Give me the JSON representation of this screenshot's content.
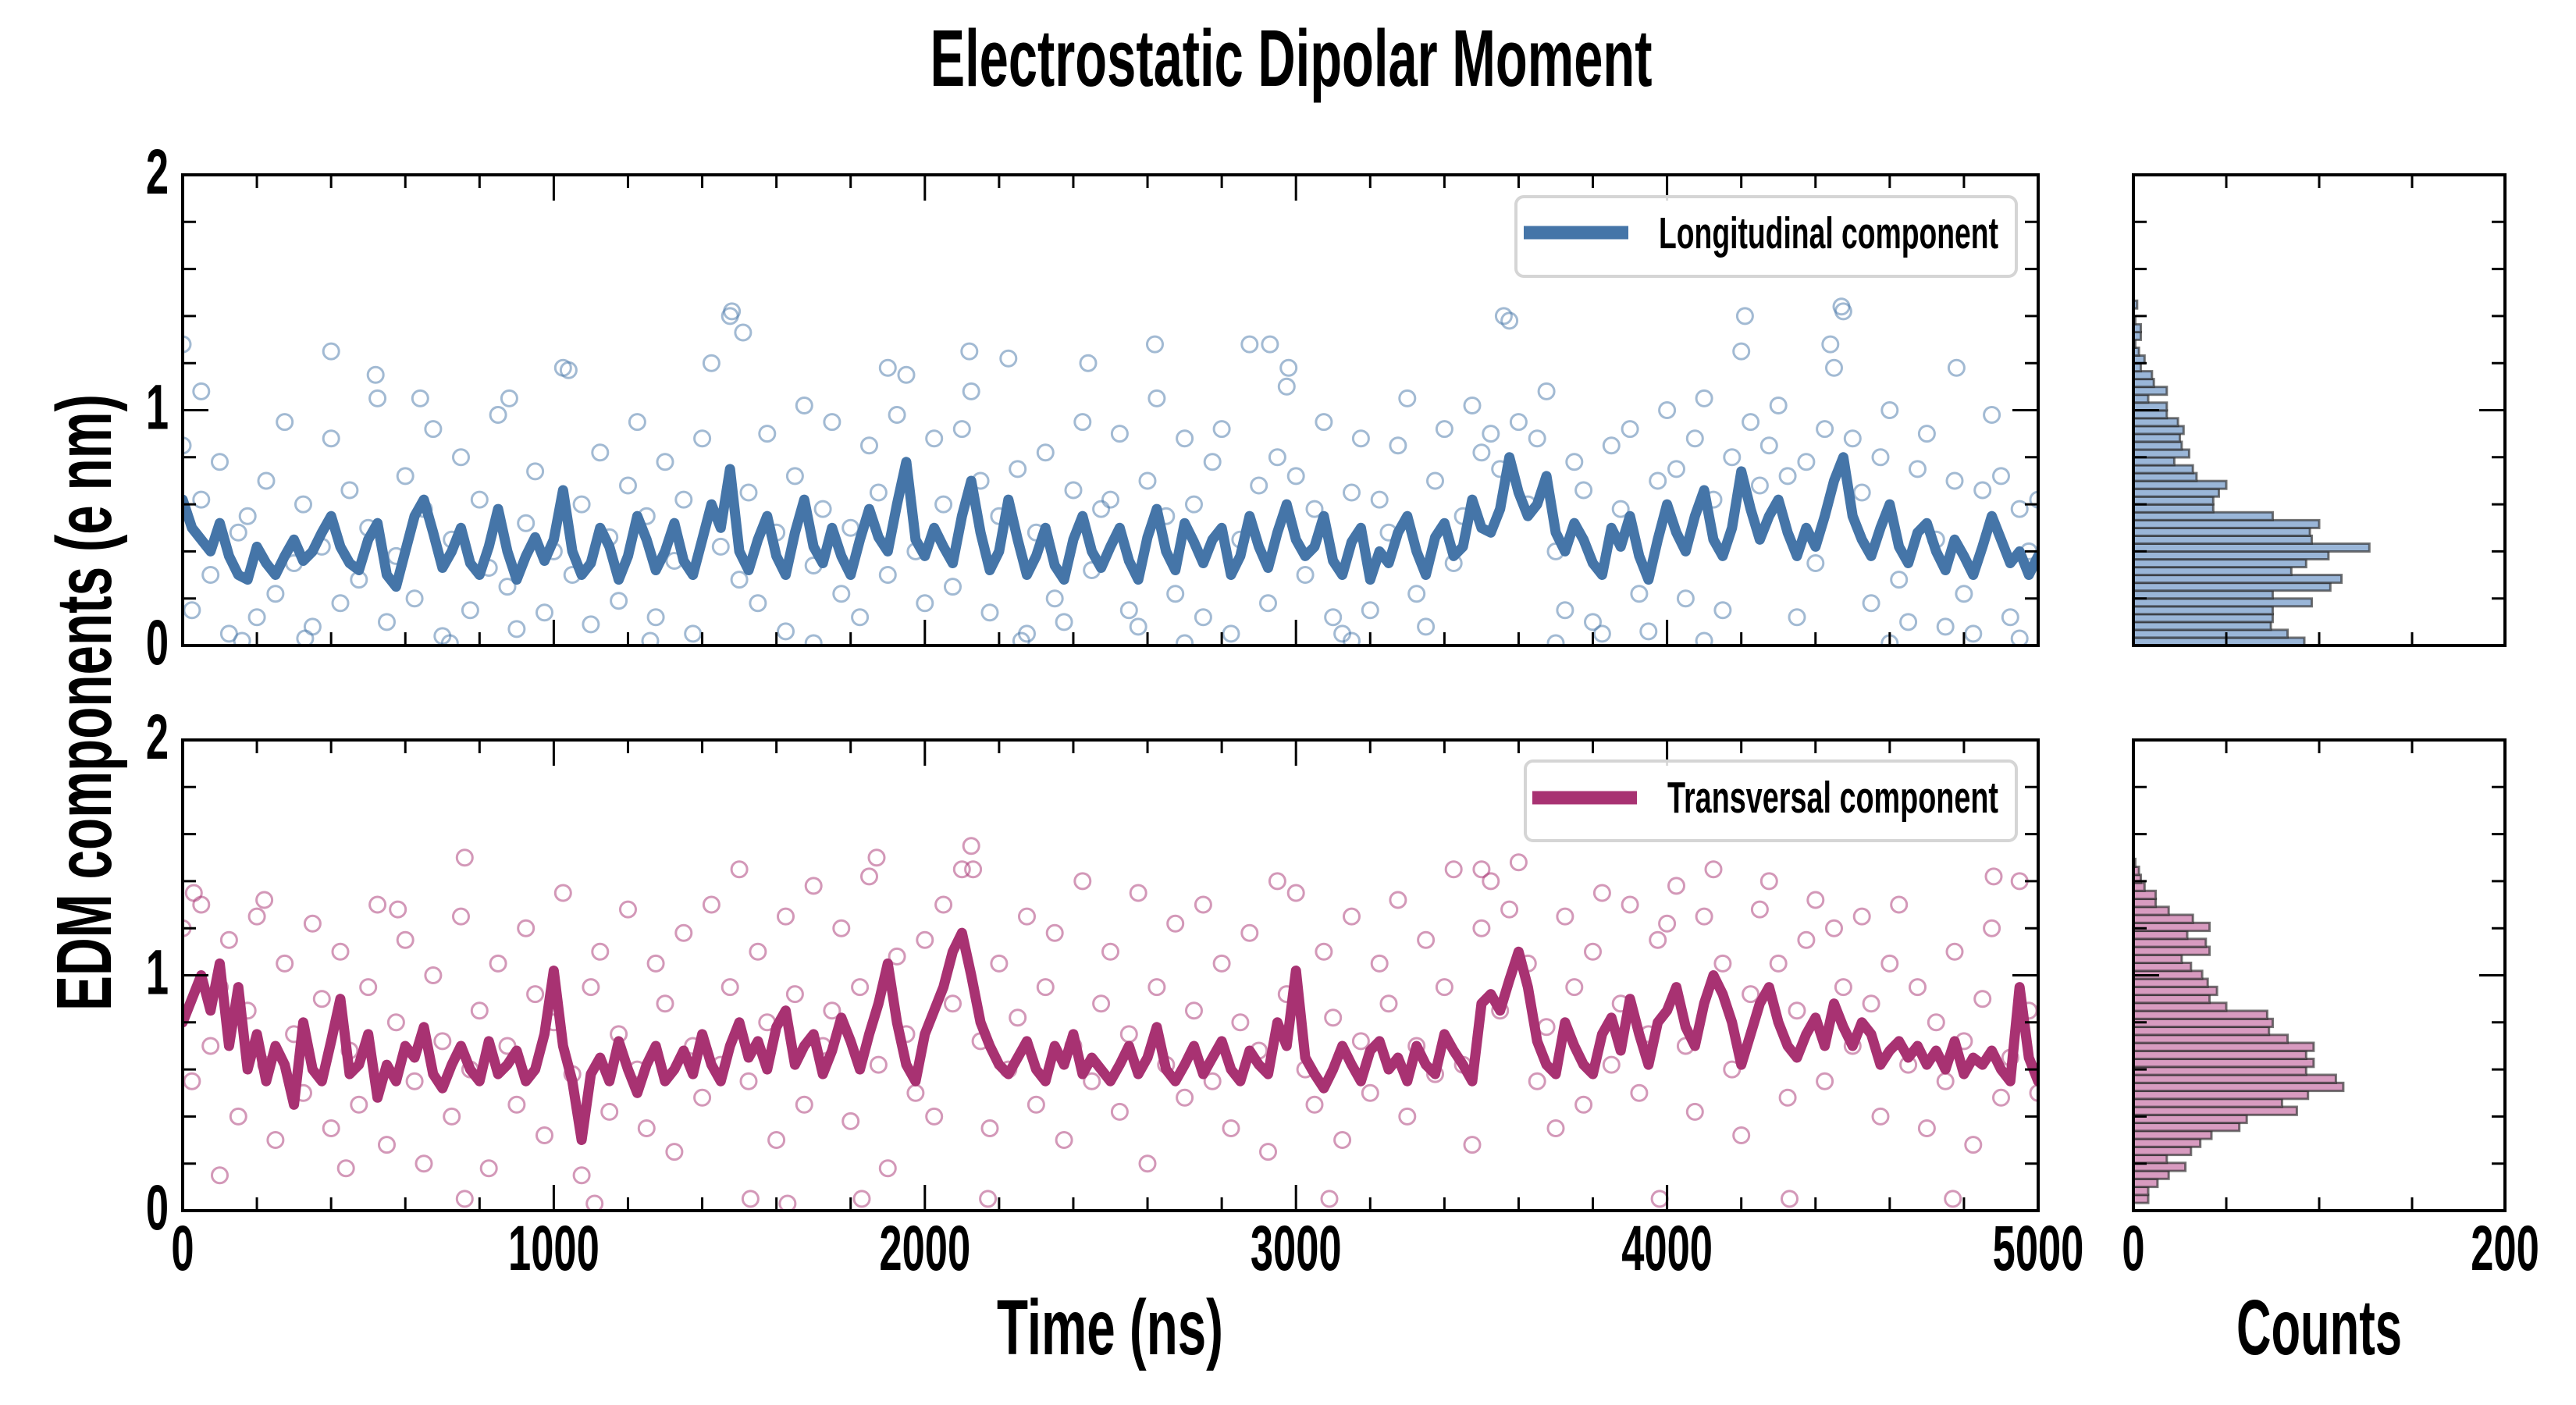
{
  "title": "Electrostatic Dipolar Moment",
  "axes": {
    "ylabel": "EDM components (e nm)",
    "xlabel_main": "Time (ns)",
    "xlabel_hist": "Counts"
  },
  "legend": {
    "top": "Longitudinal component",
    "bottom": "Transversal component"
  },
  "chart_data": [
    {
      "type": "scatter+line",
      "name": "Longitudinal component",
      "color": "#4575a8",
      "xlim": [
        0,
        5000
      ],
      "ylim": [
        0,
        2
      ],
      "x_major_ticks": [
        0,
        1000,
        2000,
        3000,
        4000,
        5000
      ],
      "x_minor_step": 200,
      "y_major_ticks": [
        0,
        1,
        2
      ],
      "y_minor_step": 0.2,
      "y_tick_labels": [
        "0",
        "1",
        "2"
      ],
      "x_tick_labels": [],
      "x_start": 0,
      "x_step": 25,
      "line": [
        0.62,
        0.5,
        0.45,
        0.4,
        0.52,
        0.38,
        0.3,
        0.28,
        0.42,
        0.35,
        0.3,
        0.38,
        0.45,
        0.36,
        0.4,
        0.48,
        0.55,
        0.42,
        0.35,
        0.32,
        0.45,
        0.52,
        0.3,
        0.25,
        0.4,
        0.55,
        0.62,
        0.48,
        0.33,
        0.4,
        0.5,
        0.35,
        0.3,
        0.42,
        0.58,
        0.4,
        0.28,
        0.38,
        0.46,
        0.36,
        0.45,
        0.66,
        0.4,
        0.3,
        0.35,
        0.5,
        0.42,
        0.28,
        0.38,
        0.55,
        0.45,
        0.32,
        0.4,
        0.52,
        0.36,
        0.3,
        0.45,
        0.6,
        0.5,
        0.75,
        0.4,
        0.32,
        0.45,
        0.55,
        0.38,
        0.3,
        0.48,
        0.62,
        0.42,
        0.35,
        0.5,
        0.38,
        0.3,
        0.45,
        0.58,
        0.46,
        0.4,
        0.6,
        0.78,
        0.45,
        0.38,
        0.5,
        0.42,
        0.35,
        0.55,
        0.7,
        0.48,
        0.32,
        0.4,
        0.62,
        0.45,
        0.3,
        0.38,
        0.5,
        0.34,
        0.28,
        0.45,
        0.55,
        0.4,
        0.33,
        0.42,
        0.5,
        0.36,
        0.28,
        0.46,
        0.58,
        0.4,
        0.32,
        0.52,
        0.44,
        0.35,
        0.45,
        0.5,
        0.3,
        0.38,
        0.55,
        0.42,
        0.33,
        0.48,
        0.6,
        0.45,
        0.38,
        0.42,
        0.55,
        0.36,
        0.3,
        0.44,
        0.5,
        0.28,
        0.4,
        0.35,
        0.48,
        0.55,
        0.4,
        0.3,
        0.46,
        0.52,
        0.38,
        0.42,
        0.62,
        0.5,
        0.48,
        0.58,
        0.8,
        0.65,
        0.55,
        0.6,
        0.72,
        0.48,
        0.4,
        0.52,
        0.45,
        0.35,
        0.3,
        0.5,
        0.42,
        0.55,
        0.38,
        0.28,
        0.45,
        0.6,
        0.48,
        0.4,
        0.55,
        0.66,
        0.45,
        0.38,
        0.5,
        0.74,
        0.58,
        0.45,
        0.55,
        0.62,
        0.48,
        0.38,
        0.5,
        0.42,
        0.55,
        0.7,
        0.8,
        0.55,
        0.45,
        0.38,
        0.5,
        0.6,
        0.42,
        0.35,
        0.48,
        0.52,
        0.4,
        0.32,
        0.45,
        0.38,
        0.3,
        0.42,
        0.55,
        0.45,
        0.35,
        0.4,
        0.3,
        0.38
      ],
      "scatter": [
        0.85,
        0.15,
        0.62,
        0.3,
        0.78,
        0.05,
        0.48,
        0.55,
        0.12,
        0.7,
        0.22,
        0.95,
        0.35,
        0.6,
        0.08,
        0.42,
        0.88,
        0.18,
        0.66,
        0.28,
        0.5,
        1.05,
        0.1,
        0.38,
        0.72,
        0.2,
        0.58,
        0.92,
        0.04,
        0.45,
        0.8,
        0.15,
        0.62,
        0.33,
        0.98,
        0.25,
        0.07,
        0.52,
        0.74,
        0.14,
        0.4,
        1.18,
        0.3,
        0.6,
        0.09,
        0.82,
        0.46,
        0.19,
        0.68,
        0.95,
        0.55,
        0.12,
        0.78,
        0.36,
        0.62,
        0.05,
        0.88,
        1.2,
        0.42,
        1.4,
        0.28,
        0.65,
        0.18,
        0.9,
        0.48,
        0.06,
        0.72,
        1.02,
        0.34,
        0.58,
        0.95,
        0.22,
        0.5,
        0.12,
        0.85,
        0.65,
        0.3,
        0.98,
        1.15,
        0.4,
        0.18,
        0.88,
        0.6,
        0.25,
        0.92,
        1.08,
        0.7,
        0.14,
        0.55,
        1.22,
        0.75,
        0.05,
        0.48,
        0.82,
        0.2,
        0.1,
        0.66,
        0.95,
        0.32,
        0.58,
        0.62,
        0.9,
        0.15,
        0.08,
        0.7,
        1.05,
        0.55,
        0.22,
        0.88,
        0.6,
        0.12,
        0.78,
        0.92,
        0.05,
        0.45,
        1.28,
        0.68,
        0.18,
        0.8,
        1.1,
        0.72,
        0.3,
        0.58,
        0.95,
        0.12,
        0.05,
        0.65,
        0.88,
        0.15,
        0.62,
        0.48,
        0.85,
        1.05,
        0.22,
        0.08,
        0.7,
        0.92,
        0.35,
        0.55,
        1.02,
        0.82,
        0.9,
        0.75,
        1.38,
        0.95,
        0.6,
        0.88,
        1.08,
        0.4,
        0.15,
        0.78,
        0.66,
        0.1,
        0.05,
        0.85,
        0.58,
        0.92,
        0.22,
        0.06,
        0.7,
        1.0,
        0.75,
        0.2,
        0.88,
        1.05,
        0.62,
        0.15,
        0.8,
        1.25,
        0.95,
        0.68,
        0.85,
        1.02,
        0.72,
        0.12,
        0.78,
        0.35,
        0.92,
        1.18,
        1.42,
        0.88,
        0.65,
        0.18,
        0.8,
        1.0,
        0.28,
        0.1,
        0.75,
        0.9,
        0.45,
        0.08,
        0.7,
        0.22,
        0.05,
        0.66,
        0.98,
        0.72,
        0.12,
        0.58,
        0.4,
        0.62
      ],
      "extra_points": [
        [
          0,
          1.28
        ],
        [
          50,
          1.08
        ],
        [
          400,
          1.25
        ],
        [
          520,
          1.15
        ],
        [
          640,
          1.05
        ],
        [
          880,
          1.05
        ],
        [
          1040,
          1.17
        ],
        [
          1480,
          1.42
        ],
        [
          1510,
          1.33
        ],
        [
          1900,
          1.18
        ],
        [
          2120,
          1.25
        ],
        [
          2440,
          1.2
        ],
        [
          2620,
          1.28
        ],
        [
          2930,
          1.28
        ],
        [
          2980,
          1.18
        ],
        [
          3560,
          1.4
        ],
        [
          4210,
          1.4
        ],
        [
          4440,
          1.28
        ],
        [
          4470,
          1.44
        ],
        [
          4780,
          1.18
        ],
        [
          160,
          0.02
        ],
        [
          330,
          0.03
        ],
        [
          720,
          0.01
        ],
        [
          1260,
          0.02
        ],
        [
          1700,
          0.01
        ],
        [
          2260,
          0.02
        ],
        [
          2700,
          0.01
        ],
        [
          3150,
          0.02
        ],
        [
          3700,
          0.01
        ],
        [
          4100,
          0.02
        ],
        [
          4600,
          0.01
        ],
        [
          4950,
          0.03
        ]
      ]
    },
    {
      "type": "scatter+line",
      "name": "Transversal component",
      "color": "#a83272",
      "xlim": [
        0,
        5000
      ],
      "ylim": [
        0,
        2
      ],
      "x_major_ticks": [
        0,
        1000,
        2000,
        3000,
        4000,
        5000
      ],
      "x_minor_step": 200,
      "y_major_ticks": [
        0,
        1,
        2
      ],
      "y_minor_step": 0.2,
      "y_tick_labels": [
        "0",
        "1",
        "2"
      ],
      "x_tick_labels": [
        "0",
        "1000",
        "2000",
        "3000",
        "4000",
        "5000"
      ],
      "x_start": 0,
      "x_step": 25,
      "line": [
        0.8,
        0.9,
        1.0,
        0.85,
        1.05,
        0.7,
        0.95,
        0.6,
        0.75,
        0.55,
        0.7,
        0.62,
        0.45,
        0.8,
        0.6,
        0.55,
        0.72,
        0.9,
        0.58,
        0.62,
        0.75,
        0.48,
        0.62,
        0.55,
        0.7,
        0.65,
        0.78,
        0.58,
        0.52,
        0.62,
        0.7,
        0.6,
        0.55,
        0.72,
        0.58,
        0.62,
        0.68,
        0.55,
        0.6,
        0.75,
        1.02,
        0.7,
        0.55,
        0.3,
        0.58,
        0.65,
        0.55,
        0.72,
        0.6,
        0.5,
        0.62,
        0.7,
        0.55,
        0.6,
        0.68,
        0.58,
        0.75,
        0.62,
        0.55,
        0.7,
        0.8,
        0.65,
        0.72,
        0.6,
        0.78,
        0.85,
        0.62,
        0.7,
        0.75,
        0.58,
        0.68,
        0.82,
        0.72,
        0.6,
        0.75,
        0.88,
        1.05,
        0.8,
        0.62,
        0.55,
        0.75,
        0.85,
        0.95,
        1.1,
        1.18,
        1.0,
        0.8,
        0.7,
        0.62,
        0.58,
        0.65,
        0.72,
        0.6,
        0.55,
        0.7,
        0.62,
        0.75,
        0.58,
        0.65,
        0.6,
        0.55,
        0.62,
        0.7,
        0.58,
        0.65,
        0.78,
        0.6,
        0.55,
        0.62,
        0.7,
        0.58,
        0.65,
        0.72,
        0.6,
        0.55,
        0.68,
        0.62,
        0.58,
        0.8,
        0.7,
        1.02,
        0.65,
        0.58,
        0.52,
        0.6,
        0.7,
        0.62,
        0.55,
        0.68,
        0.72,
        0.6,
        0.65,
        0.55,
        0.7,
        0.62,
        0.58,
        0.75,
        0.68,
        0.62,
        0.55,
        0.88,
        0.92,
        0.85,
        0.98,
        1.1,
        0.95,
        0.72,
        0.62,
        0.58,
        0.8,
        0.7,
        0.62,
        0.58,
        0.75,
        0.82,
        0.68,
        0.9,
        0.75,
        0.62,
        0.8,
        0.85,
        0.95,
        0.78,
        0.7,
        0.88,
        1.0,
        0.92,
        0.8,
        0.62,
        0.75,
        0.88,
        0.95,
        0.8,
        0.7,
        0.65,
        0.75,
        0.82,
        0.7,
        0.88,
        0.78,
        0.7,
        0.8,
        0.75,
        0.62,
        0.68,
        0.72,
        0.65,
        0.7,
        0.62,
        0.68,
        0.6,
        0.72,
        0.58,
        0.65,
        0.62,
        0.68,
        0.6,
        0.55,
        0.95,
        0.65,
        0.55
      ],
      "scatter": [
        1.2,
        0.55,
        1.3,
        0.7,
        0.95,
        1.15,
        0.4,
        0.85,
        1.25,
        0.62,
        0.3,
        1.05,
        0.75,
        0.5,
        1.22,
        0.9,
        0.35,
        1.1,
        0.68,
        0.45,
        0.95,
        1.3,
        0.28,
        0.8,
        1.15,
        0.55,
        0.2,
        1.0,
        0.72,
        0.4,
        1.25,
        0.6,
        0.85,
        0.18,
        1.05,
        0.7,
        0.45,
        1.2,
        0.92,
        0.32,
        0.8,
        1.35,
        0.58,
        0.15,
        0.95,
        1.1,
        0.42,
        0.75,
        1.28,
        0.6,
        0.35,
        1.05,
        0.88,
        0.25,
        1.18,
        0.7,
        0.48,
        1.3,
        0.62,
        0.95,
        1.45,
        0.55,
        1.1,
        0.8,
        0.3,
        1.25,
        0.92,
        0.45,
        1.38,
        0.7,
        0.85,
        1.2,
        0.38,
        0.95,
        1.42,
        0.62,
        0.18,
        1.08,
        0.75,
        0.5,
        1.15,
        0.4,
        1.3,
        0.88,
        1.45,
        1.55,
        0.72,
        0.35,
        1.05,
        0.6,
        0.82,
        1.25,
        0.45,
        0.95,
        1.18,
        0.3,
        0.7,
        1.4,
        0.55,
        0.88,
        1.1,
        0.42,
        0.75,
        1.35,
        0.2,
        0.95,
        0.62,
        1.22,
        0.48,
        0.85,
        1.3,
        0.55,
        1.05,
        0.35,
        0.8,
        1.18,
        0.68,
        0.25,
        1.4,
        0.92,
        1.35,
        0.6,
        0.45,
        1.1,
        0.82,
        0.3,
        1.25,
        0.72,
        0.5,
        1.05,
        0.88,
        1.32,
        0.4,
        0.7,
        1.15,
        0.58,
        0.95,
        1.45,
        0.62,
        0.28,
        1.2,
        1.4,
        0.85,
        1.28,
        1.48,
        1.05,
        0.55,
        0.78,
        0.35,
        1.25,
        0.95,
        0.45,
        1.1,
        1.35,
        0.62,
        0.88,
        1.3,
        0.5,
        0.75,
        1.15,
        1.22,
        1.38,
        0.7,
        0.42,
        1.25,
        1.45,
        1.05,
        0.6,
        0.32,
        0.92,
        1.28,
        1.4,
        1.05,
        0.48,
        0.85,
        1.15,
        1.32,
        0.55,
        1.2,
        0.95,
        0.7,
        1.25,
        0.88,
        0.4,
        1.05,
        1.3,
        0.62,
        0.95,
        0.35,
        0.8,
        0.55,
        1.1,
        0.72,
        0.28,
        0.9,
        1.2,
        0.48,
        0.65,
        1.4,
        0.85,
        0.5
      ],
      "extra_points": [
        [
          100,
          0.15
        ],
        [
          440,
          0.18
        ],
        [
          760,
          0.05
        ],
        [
          1110,
          0.03
        ],
        [
          1530,
          0.05
        ],
        [
          1630,
          0.03
        ],
        [
          1830,
          0.05
        ],
        [
          2170,
          0.05
        ],
        [
          3090,
          0.05
        ],
        [
          3980,
          0.05
        ],
        [
          4330,
          0.05
        ],
        [
          4770,
          0.05
        ],
        [
          760,
          1.5
        ],
        [
          1870,
          1.5
        ],
        [
          2130,
          1.45
        ],
        [
          3500,
          1.45
        ],
        [
          4880,
          1.42
        ],
        [
          30,
          1.35
        ],
        [
          220,
          1.32
        ],
        [
          580,
          1.28
        ]
      ]
    },
    {
      "type": "bar",
      "orientation": "horizontal",
      "name": "Longitudinal component histogram",
      "color": "#9ab6d8",
      "edge_color": "#2b2b2b",
      "bin_start": 0,
      "bin_width": 0.0333,
      "counts": [
        92,
        83,
        74,
        75,
        75,
        96,
        75,
        106,
        112,
        85,
        93,
        105,
        127,
        96,
        95,
        100,
        75,
        43,
        43,
        46,
        50,
        34,
        32,
        22,
        30,
        26,
        25,
        27,
        24,
        18,
        18,
        8,
        18,
        11,
        10,
        4,
        6,
        3,
        1,
        4,
        4,
        1,
        0,
        2
      ],
      "xlim": [
        0,
        200
      ],
      "ylim": [
        0,
        2
      ],
      "x_major_ticks": [
        0,
        200
      ],
      "x_minor_ticks": [
        50,
        100,
        150
      ],
      "y_major_ticks": [
        0,
        1,
        2
      ],
      "y_minor_step": 0.2,
      "x_tick_labels": []
    },
    {
      "type": "bar",
      "orientation": "horizontal",
      "name": "Transversal component histogram",
      "color": "#d89bc0",
      "edge_color": "#2b2b2b",
      "bin_start": 0.033,
      "bin_width": 0.034,
      "counts": [
        8,
        8,
        13,
        19,
        28,
        18,
        31,
        36,
        42,
        57,
        61,
        88,
        80,
        94,
        113,
        109,
        93,
        97,
        93,
        97,
        83,
        73,
        75,
        72,
        50,
        41,
        45,
        40,
        37,
        31,
        26,
        41,
        39,
        29,
        41,
        32,
        19,
        12,
        12,
        6,
        4,
        3,
        1
      ],
      "xlim": [
        0,
        200
      ],
      "ylim": [
        0,
        2
      ],
      "x_major_ticks": [
        0,
        200
      ],
      "x_minor_ticks": [
        50,
        100,
        150
      ],
      "y_major_ticks": [
        0,
        1,
        2
      ],
      "y_minor_step": 0.2,
      "x_tick_labels": [
        "0",
        "200"
      ]
    }
  ]
}
